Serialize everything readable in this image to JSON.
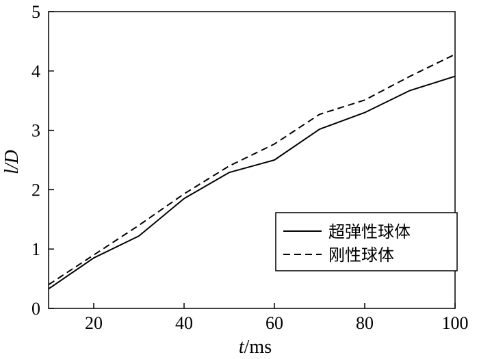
{
  "chart_data": {
    "type": "line",
    "xlabel": {
      "var": "t",
      "unit": "/ms"
    },
    "ylabel": {
      "var": "l/D"
    },
    "xlim": [
      10,
      100
    ],
    "ylim": [
      0,
      5
    ],
    "xticks": [
      20,
      40,
      60,
      80,
      100
    ],
    "yticks": [
      0,
      1,
      2,
      3,
      4,
      5
    ],
    "grid": false,
    "legend": "bottom-right",
    "series": [
      {
        "name": "超弹性球体",
        "style": "solid",
        "color": "#000000",
        "x": [
          10,
          20,
          30,
          40,
          50,
          60,
          70,
          80,
          90,
          100
        ],
        "y": [
          0.33,
          0.85,
          1.22,
          1.85,
          2.29,
          2.5,
          3.02,
          3.3,
          3.67,
          3.91
        ]
      },
      {
        "name": "刚性球体",
        "style": "dashed",
        "color": "#000000",
        "x": [
          10,
          20,
          30,
          40,
          50,
          60,
          70,
          80,
          90,
          100
        ],
        "y": [
          0.4,
          0.9,
          1.4,
          1.93,
          2.4,
          2.77,
          3.27,
          3.51,
          3.91,
          4.28
        ]
      }
    ]
  }
}
